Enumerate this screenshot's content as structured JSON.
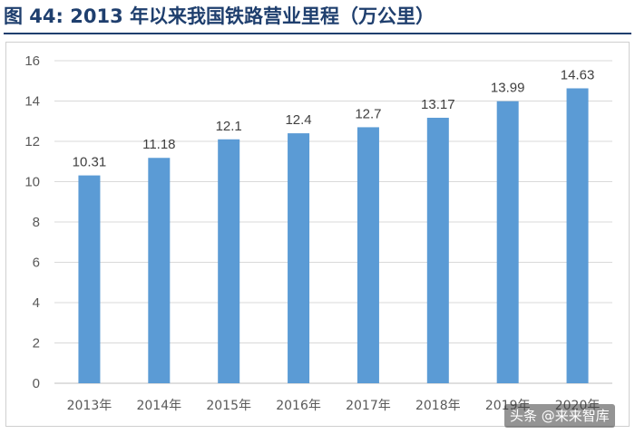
{
  "page": {
    "title": "图 44: 2013 年以来我国铁路营业里程（万公里）"
  },
  "watermark": {
    "text": "头条 @来来智库"
  },
  "colors": {
    "bar": "#5b9bd5",
    "grid": "#d9d9d9",
    "title": "#1f3f6e"
  },
  "chart_data": {
    "type": "bar",
    "categories": [
      "2013年",
      "2014年",
      "2015年",
      "2016年",
      "2017年",
      "2018年",
      "2019年",
      "2020年"
    ],
    "values": [
      10.31,
      11.18,
      12.1,
      12.4,
      12.7,
      13.17,
      13.99,
      14.63
    ],
    "value_labels": [
      "10.31",
      "11.18",
      "12.1",
      "12.4",
      "12.7",
      "13.17",
      "13.99",
      "14.63"
    ],
    "ylim": [
      0,
      16
    ],
    "yticks": [
      0,
      2,
      4,
      6,
      8,
      10,
      12,
      14,
      16
    ],
    "grid": true,
    "legend": "none",
    "xlabel": "",
    "ylabel": ""
  }
}
